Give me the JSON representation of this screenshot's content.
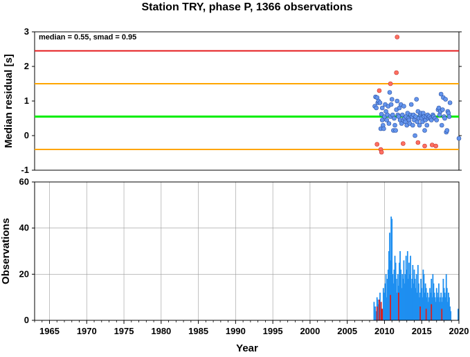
{
  "title": "Station TRY, phase P, 1366 observations",
  "annotation": "median = 0.55, smad = 0.95",
  "chart_data": [
    {
      "type": "scatter",
      "ylabel": "Median residual [s]",
      "xlim": [
        1963,
        2020
      ],
      "ylim": [
        -1,
        3
      ],
      "yticks": [
        -1,
        0,
        1,
        2,
        3
      ],
      "grid": false,
      "reference_lines": [
        {
          "y": 2.45,
          "color": "#e41a1c"
        },
        {
          "y": 1.5,
          "color": "#ffa500"
        },
        {
          "y": 0.55,
          "color": "#00ee00"
        },
        {
          "y": -0.4,
          "color": "#ffa500"
        }
      ],
      "series": [
        {
          "color": "#6495ed",
          "points": [
            [
              2008.7,
              0.85
            ],
            [
              2008.8,
              1.12
            ],
            [
              2008.9,
              0.8
            ],
            [
              2009.0,
              1.1
            ],
            [
              2009.1,
              0.95
            ],
            [
              2009.2,
              1.0
            ],
            [
              2009.4,
              0.95
            ],
            [
              2009.5,
              0.2
            ],
            [
              2009.6,
              0.62
            ],
            [
              2009.7,
              0.45
            ],
            [
              2009.7,
              0.8
            ],
            [
              2009.8,
              0.3
            ],
            [
              2009.9,
              0.2
            ],
            [
              2010.0,
              0.55
            ],
            [
              2010.1,
              0.9
            ],
            [
              2010.2,
              0.7
            ],
            [
              2010.3,
              0.45
            ],
            [
              2010.4,
              0.6
            ],
            [
              2010.5,
              0.85
            ],
            [
              2010.6,
              0.35
            ],
            [
              2010.7,
              1.25
            ],
            [
              2010.8,
              0.55
            ],
            [
              2010.9,
              0.9
            ],
            [
              2011.0,
              1.05
            ],
            [
              2011.1,
              0.6
            ],
            [
              2011.2,
              0.15
            ],
            [
              2011.3,
              0.5
            ],
            [
              2011.4,
              0.3
            ],
            [
              2011.5,
              0.15
            ],
            [
              2011.6,
              0.75
            ],
            [
              2011.7,
              1.0
            ],
            [
              2011.8,
              0.6
            ],
            [
              2011.9,
              0.55
            ],
            [
              2012.0,
              0.8
            ],
            [
              2012.1,
              0.45
            ],
            [
              2012.2,
              0.9
            ],
            [
              2012.3,
              0.35
            ],
            [
              2012.4,
              0.6
            ],
            [
              2012.5,
              0.45
            ],
            [
              2012.6,
              0.85
            ],
            [
              2012.7,
              0.5
            ],
            [
              2012.8,
              0.4
            ],
            [
              2012.9,
              0.55
            ],
            [
              2013.0,
              0.3
            ],
            [
              2013.1,
              0.65
            ],
            [
              2013.2,
              0.5
            ],
            [
              2013.3,
              0.45
            ],
            [
              2013.4,
              0.35
            ],
            [
              2013.5,
              0.6
            ],
            [
              2013.6,
              0.9
            ],
            [
              2013.7,
              0.55
            ],
            [
              2013.8,
              0.3
            ],
            [
              2013.9,
              0.6
            ],
            [
              2014.0,
              0.45
            ],
            [
              2014.1,
              0.0
            ],
            [
              2014.2,
              0.55
            ],
            [
              2014.3,
              1.05
            ],
            [
              2014.4,
              0.4
            ],
            [
              2014.5,
              0.7
            ],
            [
              2014.6,
              0.5
            ],
            [
              2014.7,
              0.3
            ],
            [
              2014.8,
              0.6
            ],
            [
              2014.9,
              0.65
            ],
            [
              2015.0,
              0.5
            ],
            [
              2015.1,
              0.4
            ],
            [
              2015.2,
              0.65
            ],
            [
              2015.3,
              0.55
            ],
            [
              2015.4,
              0.15
            ],
            [
              2015.5,
              0.45
            ],
            [
              2015.6,
              0.55
            ],
            [
              2015.7,
              0.3
            ],
            [
              2015.8,
              0.6
            ],
            [
              2015.9,
              0.5
            ],
            [
              2016.0,
              0.55
            ],
            [
              2016.2,
              0.5
            ],
            [
              2016.3,
              0.45
            ],
            [
              2016.5,
              0.6
            ],
            [
              2016.6,
              0.55
            ],
            [
              2016.8,
              0.5
            ],
            [
              2017.0,
              0.45
            ],
            [
              2017.2,
              0.75
            ],
            [
              2017.3,
              0.8
            ],
            [
              2017.4,
              0.6
            ],
            [
              2017.5,
              0.7
            ],
            [
              2017.6,
              1.2
            ],
            [
              2017.7,
              0.3
            ],
            [
              2017.8,
              0.75
            ],
            [
              2017.9,
              1.1
            ],
            [
              2018.0,
              0.55
            ],
            [
              2018.1,
              0.5
            ],
            [
              2018.2,
              1.05
            ],
            [
              2018.3,
              0.1
            ],
            [
              2018.4,
              0.15
            ],
            [
              2018.5,
              0.7
            ],
            [
              2018.6,
              0.65
            ],
            [
              2018.7,
              0.55
            ],
            [
              2018.8,
              0.95
            ],
            [
              2020.0,
              -0.08
            ]
          ]
        },
        {
          "color": "#ff7060",
          "points": [
            [
              2009.0,
              -0.25
            ],
            [
              2009.3,
              1.3
            ],
            [
              2009.5,
              -0.4
            ],
            [
              2009.6,
              -0.48
            ],
            [
              2010.8,
              1.5
            ],
            [
              2011.6,
              1.82
            ],
            [
              2011.7,
              2.85
            ],
            [
              2012.5,
              -0.23
            ],
            [
              2014.5,
              -0.2
            ],
            [
              2015.4,
              -0.3
            ],
            [
              2016.4,
              -0.27
            ],
            [
              2016.9,
              -0.3
            ]
          ]
        }
      ]
    },
    {
      "type": "bar",
      "ylabel": "Observations",
      "xlabel": "Year",
      "xlim": [
        1963,
        2020
      ],
      "ylim": [
        0,
        60
      ],
      "yticks": [
        0,
        20,
        40,
        60
      ],
      "xticks": [
        1965,
        1970,
        1975,
        1980,
        1985,
        1990,
        1995,
        2000,
        2005,
        2010,
        2015,
        2020
      ],
      "grid": true,
      "series": [
        {
          "color": "#1e8ff0",
          "bars": [
            [
              2008.6,
              8
            ],
            [
              2008.75,
              6
            ],
            [
              2008.9,
              4
            ],
            [
              2009.0,
              10
            ],
            [
              2009.1,
              9
            ],
            [
              2009.25,
              7
            ],
            [
              2009.4,
              12
            ],
            [
              2009.55,
              6
            ],
            [
              2009.7,
              5
            ],
            [
              2009.85,
              14
            ],
            [
              2010.0,
              12
            ],
            [
              2010.1,
              16
            ],
            [
              2010.2,
              20
            ],
            [
              2010.3,
              10
            ],
            [
              2010.4,
              18
            ],
            [
              2010.5,
              22
            ],
            [
              2010.6,
              30
            ],
            [
              2010.7,
              38
            ],
            [
              2010.8,
              26
            ],
            [
              2010.9,
              45
            ],
            [
              2011.0,
              44
            ],
            [
              2011.1,
              20
            ],
            [
              2011.2,
              16
            ],
            [
              2011.3,
              22
            ],
            [
              2011.4,
              28
            ],
            [
              2011.5,
              25
            ],
            [
              2011.6,
              18
            ],
            [
              2011.7,
              12
            ],
            [
              2011.8,
              20
            ],
            [
              2011.9,
              15
            ],
            [
              2012.0,
              25
            ],
            [
              2012.1,
              30
            ],
            [
              2012.2,
              22
            ],
            [
              2012.3,
              14
            ],
            [
              2012.4,
              20
            ],
            [
              2012.5,
              18
            ],
            [
              2012.6,
              26
            ],
            [
              2012.7,
              16
            ],
            [
              2012.8,
              20
            ],
            [
              2012.9,
              28
            ],
            [
              2013.0,
              22
            ],
            [
              2013.1,
              30
            ],
            [
              2013.2,
              18
            ],
            [
              2013.3,
              25
            ],
            [
              2013.4,
              20
            ],
            [
              2013.5,
              28
            ],
            [
              2013.6,
              14
            ],
            [
              2013.7,
              18
            ],
            [
              2013.8,
              24
            ],
            [
              2013.9,
              16
            ],
            [
              2014.0,
              22
            ],
            [
              2014.1,
              18
            ],
            [
              2014.2,
              14
            ],
            [
              2014.3,
              20
            ],
            [
              2014.4,
              12
            ],
            [
              2014.5,
              24
            ],
            [
              2014.6,
              16
            ],
            [
              2014.7,
              10
            ],
            [
              2014.8,
              12
            ],
            [
              2014.9,
              18
            ],
            [
              2015.0,
              14
            ],
            [
              2015.1,
              10
            ],
            [
              2015.2,
              22
            ],
            [
              2015.3,
              20
            ],
            [
              2015.4,
              12
            ],
            [
              2015.5,
              16
            ],
            [
              2015.6,
              14
            ],
            [
              2015.7,
              10
            ],
            [
              2015.8,
              12
            ],
            [
              2015.9,
              8
            ],
            [
              2016.0,
              10
            ],
            [
              2016.1,
              14
            ],
            [
              2016.2,
              12
            ],
            [
              2016.3,
              18
            ],
            [
              2016.4,
              10
            ],
            [
              2016.5,
              20
            ],
            [
              2016.6,
              16
            ],
            [
              2016.7,
              12
            ],
            [
              2016.8,
              10
            ],
            [
              2016.9,
              8
            ],
            [
              2017.0,
              14
            ],
            [
              2017.1,
              12
            ],
            [
              2017.2,
              10
            ],
            [
              2017.3,
              16
            ],
            [
              2017.4,
              8
            ],
            [
              2017.5,
              10
            ],
            [
              2017.6,
              12
            ],
            [
              2017.7,
              8
            ],
            [
              2017.8,
              10
            ],
            [
              2017.9,
              18
            ],
            [
              2018.0,
              14
            ],
            [
              2018.1,
              12
            ],
            [
              2018.2,
              10
            ],
            [
              2018.3,
              20
            ],
            [
              2018.4,
              14
            ],
            [
              2018.5,
              8
            ],
            [
              2018.6,
              12
            ],
            [
              2018.7,
              10
            ],
            [
              2018.8,
              6
            ],
            [
              2018.9,
              4
            ],
            [
              2019.9,
              5
            ]
          ]
        },
        {
          "color": "#dc1e1e",
          "bars": [
            [
              2009.0,
              6
            ],
            [
              2009.3,
              9
            ],
            [
              2009.55,
              8
            ],
            [
              2009.7,
              5
            ],
            [
              2010.8,
              11
            ],
            [
              2011.9,
              12
            ],
            [
              2014.8,
              6
            ],
            [
              2015.6,
              5
            ],
            [
              2016.3,
              7
            ],
            [
              2017.7,
              5
            ]
          ]
        }
      ]
    }
  ]
}
